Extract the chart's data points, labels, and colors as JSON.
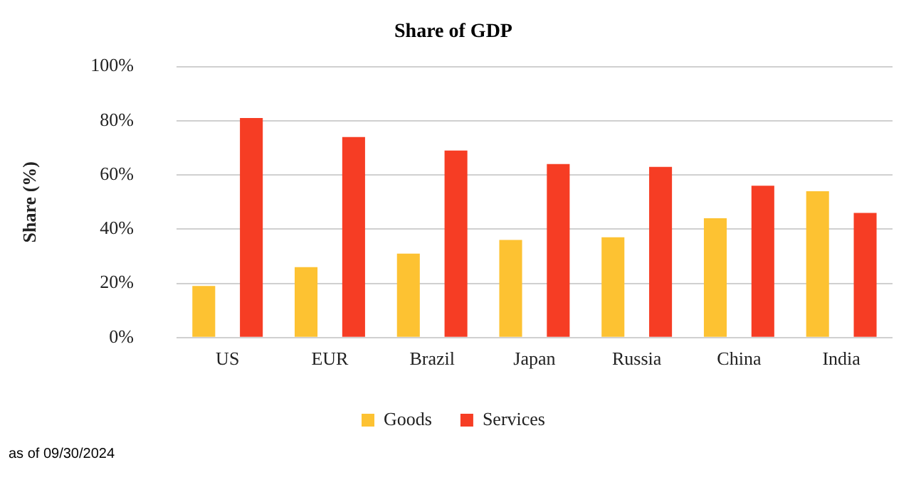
{
  "chart_data": {
    "type": "bar",
    "title": "Share of GDP",
    "ylabel": "Share (%)",
    "categories": [
      "US",
      "EUR",
      "Brazil",
      "Japan",
      "Russia",
      "China",
      "India"
    ],
    "series": [
      {
        "name": "Goods",
        "color": "#fdc232",
        "values": [
          19,
          26,
          31,
          36,
          37,
          44,
          54
        ]
      },
      {
        "name": "Services",
        "color": "#f63d24",
        "values": [
          81,
          74,
          69,
          64,
          63,
          56,
          46
        ]
      }
    ],
    "ylim": [
      0,
      100
    ],
    "yticks": [
      {
        "value": 0,
        "label": "0%"
      },
      {
        "value": 20,
        "label": "20%"
      },
      {
        "value": 40,
        "label": "40%"
      },
      {
        "value": 60,
        "label": "60%"
      },
      {
        "value": 80,
        "label": "80%"
      },
      {
        "value": 100,
        "label": "100%"
      }
    ],
    "grid": "y",
    "legend": "bottom",
    "annotations": [
      "as of 09/30/2024"
    ]
  }
}
